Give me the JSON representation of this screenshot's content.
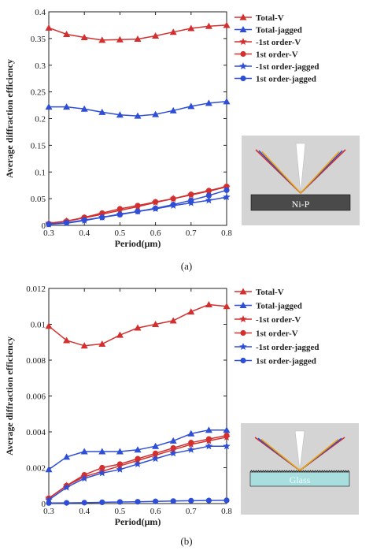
{
  "chart_data": [
    {
      "type": "line",
      "x": [
        0.3,
        0.35,
        0.4,
        0.45,
        0.5,
        0.55,
        0.6,
        0.65,
        0.7,
        0.75,
        0.8
      ],
      "xlabel": "Period(μm)",
      "ylabel": "Average diffraction efficiency",
      "xlim": [
        0.3,
        0.8
      ],
      "ylim": [
        0,
        0.4
      ],
      "xticks": [
        "0.3",
        "0.4",
        "0.5",
        "0.6",
        "0.7",
        "0.8"
      ],
      "yticks": [
        "0",
        "0.05",
        "0.1",
        "0.15",
        "0.2",
        "0.25",
        "0.3",
        "0.35",
        "0.4"
      ],
      "legend_position": "top-right",
      "grid": false,
      "series": [
        {
          "name": "Total-V",
          "marker": "triangle",
          "color": "#d32f2f",
          "values": [
            0.37,
            0.358,
            0.352,
            0.347,
            0.348,
            0.349,
            0.355,
            0.362,
            0.369,
            0.373,
            0.375
          ]
        },
        {
          "name": "Total-jagged",
          "marker": "triangle",
          "color": "#2e4ed6",
          "values": [
            0.222,
            0.222,
            0.218,
            0.212,
            0.207,
            0.205,
            0.208,
            0.215,
            0.223,
            0.229,
            0.232
          ]
        },
        {
          "name": "-1st order-V",
          "marker": "star",
          "color": "#d32f2f",
          "values": [
            0.004,
            0.008,
            0.014,
            0.021,
            0.028,
            0.035,
            0.043,
            0.05,
            0.057,
            0.064,
            0.072
          ]
        },
        {
          "name": "1st order-V",
          "marker": "circle",
          "color": "#d32f2f",
          "values": [
            0.003,
            0.008,
            0.015,
            0.023,
            0.031,
            0.037,
            0.044,
            0.05,
            0.058,
            0.065,
            0.073
          ]
        },
        {
          "name": "-1st order-jagged",
          "marker": "star",
          "color": "#2e4ed6",
          "values": [
            0.002,
            0.004,
            0.009,
            0.015,
            0.021,
            0.026,
            0.031,
            0.037,
            0.042,
            0.047,
            0.053
          ]
        },
        {
          "name": "1st order-jagged",
          "marker": "circle",
          "color": "#2e4ed6",
          "values": [
            0.002,
            0.005,
            0.01,
            0.015,
            0.02,
            0.026,
            0.032,
            0.039,
            0.047,
            0.056,
            0.066
          ]
        }
      ],
      "inset": {
        "label": "Ni-P",
        "substrate_color": "#4a4a4a"
      },
      "caption": "(a)"
    },
    {
      "type": "line",
      "x": [
        0.3,
        0.35,
        0.4,
        0.45,
        0.5,
        0.55,
        0.6,
        0.65,
        0.7,
        0.75,
        0.8
      ],
      "xlabel": "Period(μm)",
      "ylabel": "Average diffraction efficiency",
      "xlim": [
        0.3,
        0.8
      ],
      "ylim": [
        0,
        0.012
      ],
      "xticks": [
        "0.3",
        "0.4",
        "0.5",
        "0.6",
        "0.7",
        "0.8"
      ],
      "yticks": [
        "0",
        "0.002",
        "0.004",
        "0.006",
        "0.008",
        "0.01",
        "0.012"
      ],
      "legend_position": "top-right",
      "grid": false,
      "series": [
        {
          "name": "Total-V",
          "marker": "triangle",
          "color": "#d32f2f",
          "values": [
            0.0099,
            0.0091,
            0.0088,
            0.0089,
            0.0094,
            0.0098,
            0.01,
            0.0102,
            0.0107,
            0.0111,
            0.011
          ]
        },
        {
          "name": "Total-jagged",
          "marker": "triangle",
          "color": "#2e4ed6",
          "values": [
            0.0019,
            0.0026,
            0.0029,
            0.0029,
            0.0029,
            0.003,
            0.0032,
            0.0035,
            0.0039,
            0.0041,
            0.0041
          ]
        },
        {
          "name": "-1st order-V",
          "marker": "star",
          "color": "#d32f2f",
          "values": [
            0.0003,
            0.001,
            0.0015,
            0.0018,
            0.0021,
            0.0024,
            0.0027,
            0.003,
            0.0033,
            0.0035,
            0.0037
          ]
        },
        {
          "name": "1st order-V",
          "marker": "circle",
          "color": "#d32f2f",
          "values": [
            0.0003,
            0.001,
            0.0016,
            0.002,
            0.0022,
            0.0025,
            0.0028,
            0.0031,
            0.0034,
            0.0036,
            0.0038
          ]
        },
        {
          "name": "-1st order-jagged",
          "marker": "star",
          "color": "#2e4ed6",
          "values": [
            0.0002,
            0.0009,
            0.0014,
            0.0017,
            0.0019,
            0.0022,
            0.0025,
            0.0028,
            0.003,
            0.0032,
            0.0032
          ]
        },
        {
          "name": "1st order-jagged",
          "marker": "circle",
          "color": "#2e4ed6",
          "values": [
            3e-05,
            4e-05,
            5e-05,
            7e-05,
            9e-05,
            0.0001,
            0.00012,
            0.00014,
            0.00016,
            0.00017,
            0.00018
          ]
        }
      ],
      "inset": {
        "label": "Glass",
        "substrate_color": "#a8dede"
      },
      "caption": "(b)"
    }
  ]
}
